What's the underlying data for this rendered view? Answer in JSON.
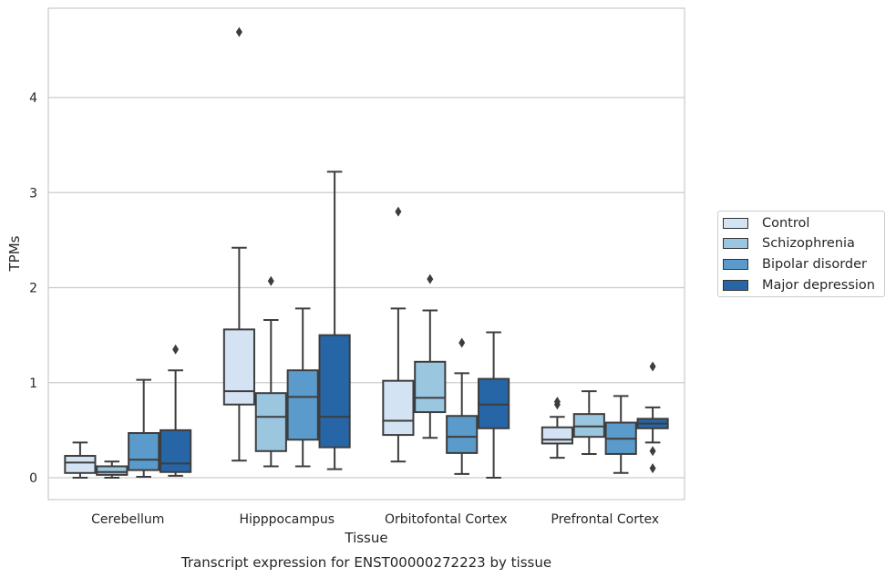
{
  "chart_data": {
    "type": "boxplot",
    "caption": "Transcript expression for ENST00000272223 by tissue",
    "xlabel": "Tissue",
    "ylabel": "TPMs",
    "ylim": [
      -0.23,
      4.95
    ],
    "yticks": [
      0,
      1,
      2,
      3,
      4
    ],
    "grid": "horizontal",
    "legend_position": "right",
    "categories": [
      "Cerebellum",
      "Hipppocampus",
      "Orbitofontal Cortex",
      "Prefrontal Cortex"
    ],
    "series": [
      {
        "name": "Control",
        "color": "#d4e3f3",
        "boxes": [
          {
            "whislo": 0.0,
            "q1": 0.05,
            "med": 0.16,
            "q3": 0.23,
            "whishi": 0.37,
            "fliers": []
          },
          {
            "whislo": 0.18,
            "q1": 0.77,
            "med": 0.91,
            "q3": 1.56,
            "whishi": 2.42,
            "fliers": [
              4.69
            ]
          },
          {
            "whislo": 0.17,
            "q1": 0.45,
            "med": 0.6,
            "q3": 1.02,
            "whishi": 1.78,
            "fliers": [
              2.8
            ]
          },
          {
            "whislo": 0.21,
            "q1": 0.36,
            "med": 0.4,
            "q3": 0.53,
            "whishi": 0.64,
            "fliers": [
              0.77,
              0.8
            ]
          }
        ]
      },
      {
        "name": "Schizophrenia",
        "color": "#9bc6e0",
        "boxes": [
          {
            "whislo": 0.0,
            "q1": 0.03,
            "med": 0.06,
            "q3": 0.12,
            "whishi": 0.17,
            "fliers": []
          },
          {
            "whislo": 0.12,
            "q1": 0.28,
            "med": 0.64,
            "q3": 0.89,
            "whishi": 1.66,
            "fliers": [
              2.07
            ]
          },
          {
            "whislo": 0.42,
            "q1": 0.69,
            "med": 0.84,
            "q3": 1.22,
            "whishi": 1.76,
            "fliers": [
              2.09
            ]
          },
          {
            "whislo": 0.25,
            "q1": 0.43,
            "med": 0.54,
            "q3": 0.67,
            "whishi": 0.91,
            "fliers": []
          }
        ]
      },
      {
        "name": "Bipolar disorder",
        "color": "#5a9bcb",
        "boxes": [
          {
            "whislo": 0.01,
            "q1": 0.08,
            "med": 0.19,
            "q3": 0.47,
            "whishi": 1.03,
            "fliers": []
          },
          {
            "whislo": 0.12,
            "q1": 0.4,
            "med": 0.85,
            "q3": 1.13,
            "whishi": 1.78,
            "fliers": []
          },
          {
            "whislo": 0.04,
            "q1": 0.26,
            "med": 0.43,
            "q3": 0.65,
            "whishi": 1.1,
            "fliers": [
              1.42
            ]
          },
          {
            "whislo": 0.05,
            "q1": 0.25,
            "med": 0.41,
            "q3": 0.58,
            "whishi": 0.86,
            "fliers": []
          }
        ]
      },
      {
        "name": "Major depression",
        "color": "#2666a7",
        "boxes": [
          {
            "whislo": 0.02,
            "q1": 0.06,
            "med": 0.15,
            "q3": 0.5,
            "whishi": 1.13,
            "fliers": [
              1.35
            ]
          },
          {
            "whislo": 0.09,
            "q1": 0.32,
            "med": 0.64,
            "q3": 1.5,
            "whishi": 3.22,
            "fliers": []
          },
          {
            "whislo": 0.0,
            "q1": 0.52,
            "med": 0.77,
            "q3": 1.04,
            "whishi": 1.53,
            "fliers": []
          },
          {
            "whislo": 0.37,
            "q1": 0.52,
            "med": 0.57,
            "q3": 0.62,
            "whishi": 0.74,
            "fliers": [
              0.1,
              0.28,
              1.17
            ]
          }
        ]
      }
    ]
  }
}
